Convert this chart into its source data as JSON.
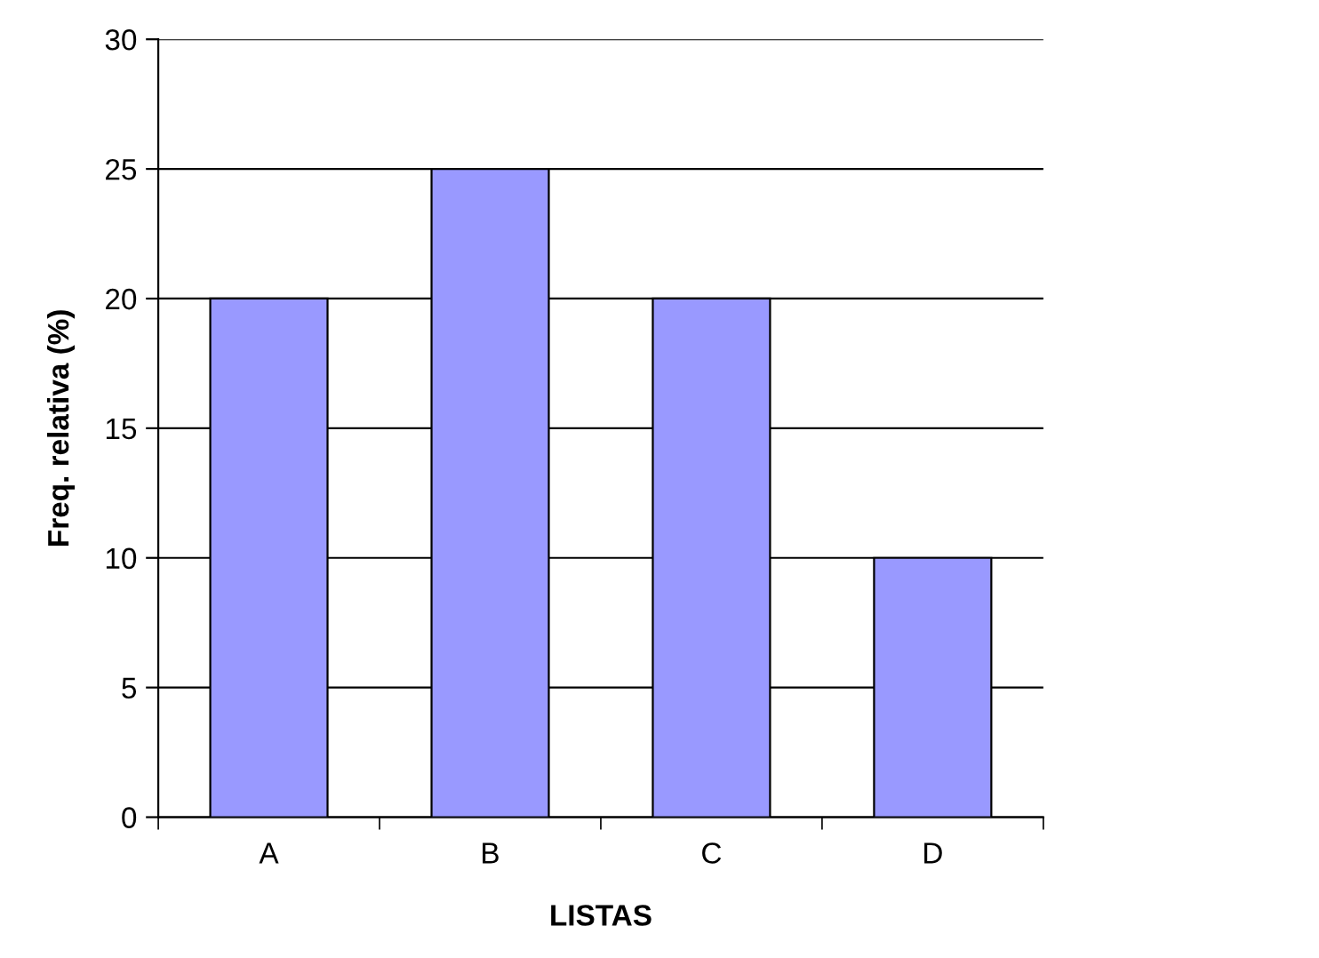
{
  "chart_data": {
    "type": "bar",
    "xlabel": "LISTAS",
    "ylabel": "Freq. relativa (%)",
    "categories": [
      "A",
      "B",
      "C",
      "D"
    ],
    "values": [
      20,
      25,
      20,
      10
    ],
    "color": "#9999ff",
    "ylim": [
      0,
      30
    ],
    "yticks": [
      0,
      5,
      10,
      15,
      20,
      25,
      30
    ],
    "grid": "y",
    "legend": false
  }
}
